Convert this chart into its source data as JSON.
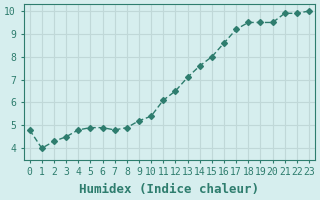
{
  "x": [
    0,
    1,
    2,
    3,
    4,
    5,
    6,
    7,
    8,
    9,
    10,
    11,
    12,
    13,
    14,
    15,
    16,
    17,
    18,
    19,
    20,
    21,
    22,
    23
  ],
  "y": [
    4.8,
    4.0,
    4.3,
    4.5,
    4.8,
    4.9,
    4.9,
    4.8,
    4.9,
    5.2,
    5.4,
    6.1,
    6.5,
    7.1,
    7.6,
    8.0,
    8.6,
    9.2,
    9.5,
    9.5,
    9.5,
    9.9,
    9.9,
    10.0
  ],
  "line_color": "#2e7d6e",
  "marker": "D",
  "marker_size": 3,
  "bg_color": "#d6eeee",
  "grid_color": "#c0d8d8",
  "xlabel": "Humidex (Indice chaleur)",
  "xlabel_fontsize": 9,
  "tick_color": "#2e7d6e",
  "tick_fontsize": 7,
  "ylim": [
    3.5,
    10.3
  ],
  "xlim": [
    -0.5,
    23.5
  ],
  "yticks": [
    4,
    5,
    6,
    7,
    8,
    9,
    10
  ],
  "xticks": [
    0,
    1,
    2,
    3,
    4,
    5,
    6,
    7,
    8,
    9,
    10,
    11,
    12,
    13,
    14,
    15,
    16,
    17,
    18,
    19,
    20,
    21,
    22,
    23
  ]
}
